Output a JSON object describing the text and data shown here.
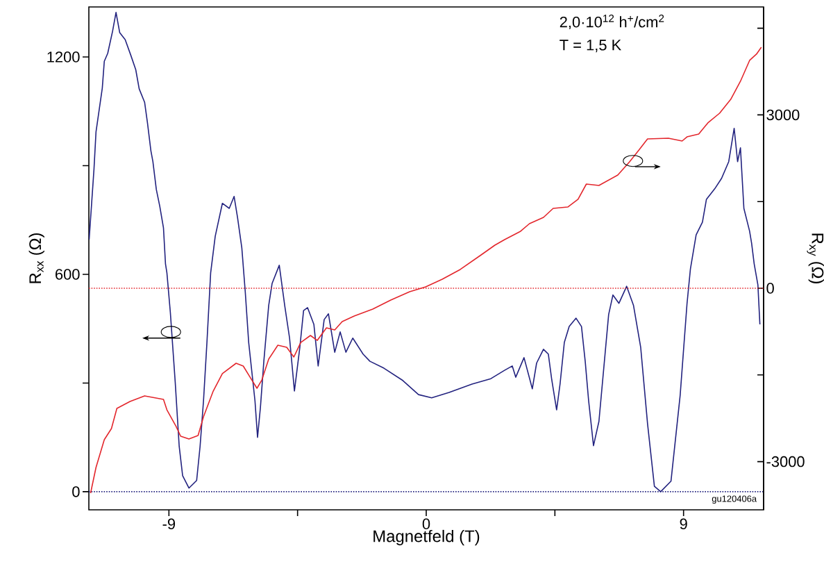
{
  "chart_data": {
    "type": "line",
    "xlabel": "Magnetfeld (T)",
    "ylabel": "R$_{xx}$ (Ω)",
    "y2label": "R$_{xy}$ (Ω)",
    "xlim": [
      -11.8,
      11.8
    ],
    "ylim": [
      -50,
      1338
    ],
    "y2lim": [
      -3834,
      4868
    ],
    "xticks": [
      -9,
      {
        "value": -4.5,
        "label": null
      },
      0,
      {
        "value": 4.5,
        "label": null
      },
      9
    ],
    "yticks": [
      0,
      {
        "value": 300,
        "label": null
      },
      600,
      {
        "value": 900,
        "label": null
      },
      1200
    ],
    "y2ticks": [
      -3000,
      {
        "value": -1500,
        "label": null
      },
      0,
      {
        "value": 1500,
        "label": null
      },
      3000,
      {
        "value": 4500,
        "label": null
      }
    ],
    "annotations": [
      "2,0·10$^{12}$ h$^{+}$/cm$^{2}$",
      "T = 1,5 K",
      "gu120406a"
    ],
    "ref_lines": [
      {
        "axis": "y2",
        "value": 0,
        "color": "#e3262c",
        "line_style": "dotted"
      },
      {
        "axis": "y",
        "value": 0,
        "color": "#22227f",
        "line_style": "dotted"
      }
    ],
    "series": [
      {
        "color": "#22227f",
        "x": [
          -11.79,
          -11.62,
          -11.55,
          -11.33,
          -11.26,
          -11.14,
          -10.97,
          -10.85,
          -10.72,
          -10.53,
          -10.33,
          -10.16,
          -10.04,
          -9.85,
          -9.75,
          -9.63,
          -9.56,
          -9.44,
          -9.32,
          -9.19,
          -9.12,
          -9.07,
          -8.95,
          -8.78,
          -8.64,
          -8.52,
          -8.3,
          -8.03,
          -7.91,
          -7.79,
          -7.67,
          -7.54,
          -7.38,
          -7.13,
          -6.89,
          -6.72,
          -6.6,
          -6.45,
          -6.33,
          -6.21,
          -5.99,
          -5.9,
          -5.8,
          -5.68,
          -5.51,
          -5.39,
          -5.14,
          -4.95,
          -4.78,
          -4.61,
          -4.42,
          -4.29,
          -4.15,
          -3.93,
          -3.78,
          -3.57,
          -3.42,
          -3.2,
          -3.01,
          -2.81,
          -2.57,
          -2.21,
          -1.97,
          -1.48,
          -0.82,
          -0.27,
          0.19,
          0.8,
          1.6,
          2.26,
          2.74,
          3.01,
          3.13,
          3.42,
          3.71,
          3.86,
          4.1,
          4.27,
          4.39,
          4.56,
          4.68,
          4.83,
          5.0,
          5.24,
          5.43,
          5.56,
          5.68,
          5.85,
          6.04,
          6.38,
          6.53,
          6.74,
          7.01,
          7.25,
          7.5,
          7.74,
          7.98,
          8.2,
          8.56,
          8.88,
          9.12,
          9.24,
          9.44,
          9.66,
          9.8,
          10.09,
          10.33,
          10.58,
          10.77,
          10.89,
          10.99,
          11.11,
          11.31,
          11.38,
          11.47,
          11.6,
          11.67
        ],
        "values": [
          696,
          891,
          993,
          1114,
          1188,
          1210,
          1271,
          1323,
          1267,
          1248,
          1204,
          1165,
          1112,
          1075,
          1018,
          941,
          911,
          834,
          788,
          728,
          629,
          604,
          495,
          303,
          125,
          44,
          10,
          31,
          125,
          251,
          412,
          604,
          705,
          796,
          782,
          815,
          757,
          673,
          552,
          412,
          251,
          150,
          232,
          360,
          514,
          575,
          625,
          514,
          424,
          278,
          399,
          500,
          508,
          462,
          347,
          475,
          491,
          385,
          441,
          385,
          424,
          380,
          360,
          341,
          307,
          268,
          259,
          274,
          297,
          312,
          335,
          347,
          316,
          370,
          284,
          355,
          393,
          380,
          309,
          226,
          297,
          412,
          456,
          479,
          456,
          360,
          251,
          127,
          194,
          489,
          543,
          520,
          567,
          514,
          399,
          188,
          15,
          0,
          29,
          265,
          518,
          615,
          709,
          744,
          807,
          836,
          865,
          911,
          1003,
          911,
          949,
          782,
          719,
          686,
          629,
          571,
          462
        ]
      },
      {
        "color": "#e3262c",
        "axis": "y2",
        "x": [
          -11.74,
          -11.55,
          -11.26,
          -11.01,
          -10.82,
          -10.36,
          -9.85,
          -9.19,
          -9.07,
          -8.76,
          -8.59,
          -8.3,
          -7.98,
          -7.79,
          -7.45,
          -7.13,
          -6.65,
          -6.4,
          -6.16,
          -5.92,
          -5.75,
          -5.51,
          -5.19,
          -4.88,
          -4.63,
          -4.39,
          -4.05,
          -3.81,
          -3.49,
          -3.2,
          -2.94,
          -2.52,
          -1.87,
          -1.24,
          -0.58,
          -0.02,
          0.56,
          1.19,
          1.92,
          2.4,
          2.74,
          3.3,
          3.61,
          4.1,
          4.44,
          4.95,
          5.31,
          5.6,
          6.04,
          6.7,
          7.11,
          7.42,
          7.74,
          8.47,
          8.95,
          9.12,
          9.53,
          9.85,
          10.26,
          10.65,
          10.99,
          11.31,
          11.55,
          11.72
        ],
        "values": [
          -3546,
          -3101,
          -2620,
          -2428,
          -2079,
          -1959,
          -1863,
          -1923,
          -2104,
          -2380,
          -2560,
          -2608,
          -2548,
          -2224,
          -1779,
          -1478,
          -1298,
          -1346,
          -1539,
          -1731,
          -1587,
          -1226,
          -986,
          -1022,
          -1190,
          -938,
          -817,
          -902,
          -685,
          -721,
          -577,
          -481,
          -361,
          -204,
          -60,
          24,
          156,
          325,
          577,
          745,
          841,
          986,
          1118,
          1226,
          1382,
          1406,
          1539,
          1803,
          1779,
          1959,
          2188,
          2380,
          2584,
          2596,
          2548,
          2620,
          2668,
          2861,
          3029,
          3269,
          3582,
          3943,
          4051,
          4171
        ]
      }
    ]
  }
}
